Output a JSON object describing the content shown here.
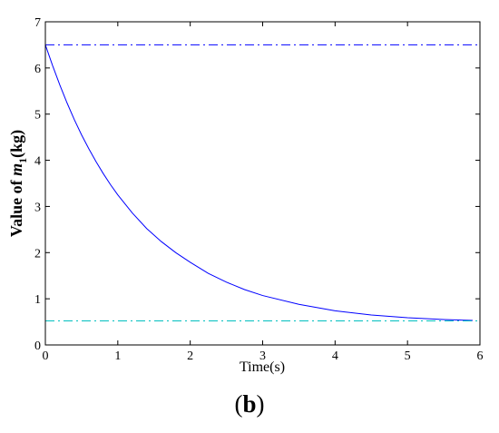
{
  "chart_data": {
    "type": "line",
    "title": "",
    "xlabel": "Time(s)",
    "ylabel": {
      "prefix": "Value  of ",
      "symbol": "m",
      "subscript": "1",
      "unit": "(kg)"
    },
    "xlim": [
      0,
      6
    ],
    "ylim": [
      0,
      7
    ],
    "xticks": [
      0,
      1,
      2,
      3,
      4,
      5,
      6
    ],
    "yticks": [
      0,
      1,
      2,
      3,
      4,
      5,
      6,
      7
    ],
    "grid": false,
    "box": true,
    "series": [
      {
        "style": "solid",
        "color": "#0000ff",
        "x": [
          0,
          0.1,
          0.2,
          0.3,
          0.4,
          0.5,
          0.6,
          0.7,
          0.8,
          0.9,
          1.0,
          1.2,
          1.4,
          1.6,
          1.8,
          2.0,
          2.25,
          2.5,
          2.75,
          3.0,
          3.5,
          4.0,
          4.5,
          5.0,
          5.5,
          5.9
        ],
        "y": [
          6.5,
          6.05,
          5.63,
          5.24,
          4.88,
          4.55,
          4.25,
          3.97,
          3.71,
          3.47,
          3.25,
          2.86,
          2.52,
          2.24,
          2.0,
          1.79,
          1.55,
          1.36,
          1.2,
          1.07,
          0.88,
          0.74,
          0.65,
          0.59,
          0.55,
          0.53
        ]
      },
      {
        "style": "dashdot",
        "color": "#0000ff",
        "x": [
          0,
          6
        ],
        "y": [
          6.5,
          6.5
        ]
      },
      {
        "style": "dashdot",
        "color": "#00bfbf",
        "x": [
          0,
          6
        ],
        "y": [
          0.52,
          0.52
        ]
      }
    ]
  },
  "panel_label": {
    "open": "(",
    "letter": "b",
    "close": ")"
  }
}
